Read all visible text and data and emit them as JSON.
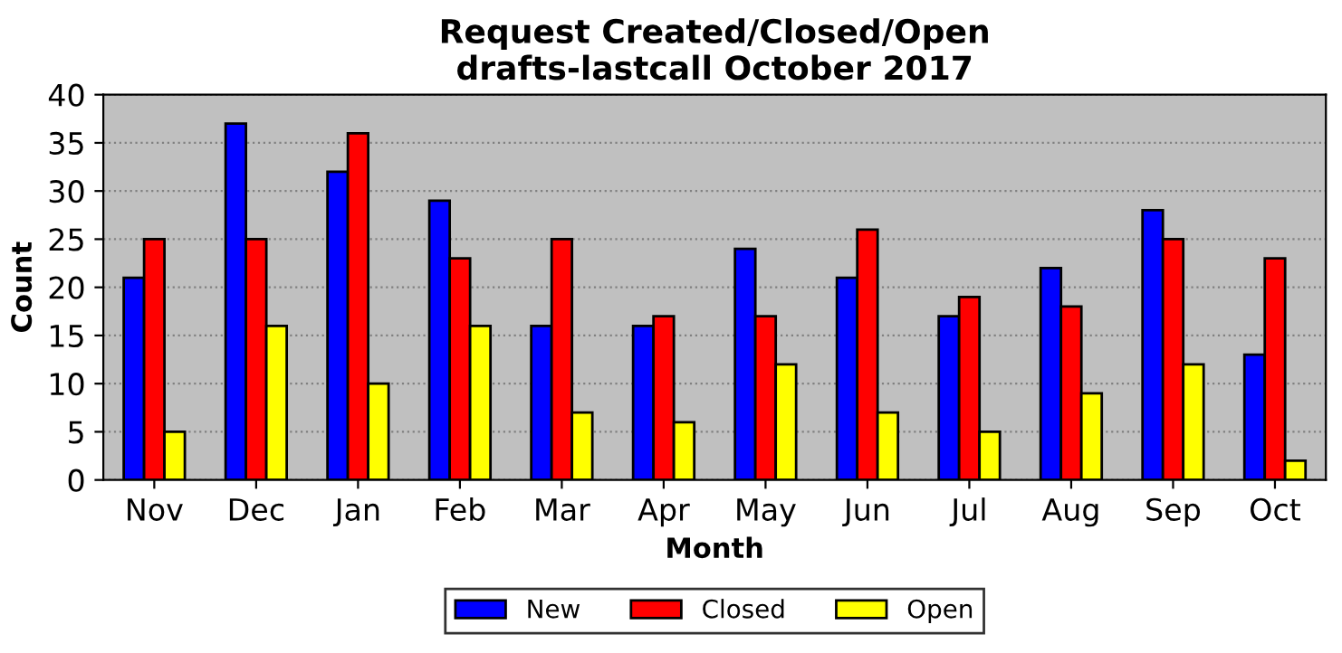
{
  "chart_data": {
    "type": "bar",
    "title": "Request Created/Closed/Open\ndrafts-lastcall October 2017",
    "xlabel": "Month",
    "ylabel": "Count",
    "categories": [
      "Nov",
      "Dec",
      "Jan",
      "Feb",
      "Mar",
      "Apr",
      "May",
      "Jun",
      "Jul",
      "Aug",
      "Sep",
      "Oct"
    ],
    "series": [
      {
        "name": "New",
        "color": "#0000ff",
        "values": [
          21,
          37,
          32,
          29,
          16,
          16,
          24,
          21,
          17,
          22,
          28,
          13
        ]
      },
      {
        "name": "Closed",
        "color": "#ff0000",
        "values": [
          25,
          25,
          36,
          23,
          25,
          17,
          17,
          26,
          19,
          18,
          25,
          23
        ]
      },
      {
        "name": "Open",
        "color": "#ffff00",
        "values": [
          5,
          16,
          10,
          16,
          7,
          6,
          12,
          7,
          5,
          9,
          12,
          2
        ]
      }
    ],
    "ylim": [
      0,
      40
    ],
    "yticks": [
      0,
      5,
      10,
      15,
      20,
      25,
      30,
      35,
      40
    ],
    "grid": "y",
    "legend": "bottom"
  }
}
